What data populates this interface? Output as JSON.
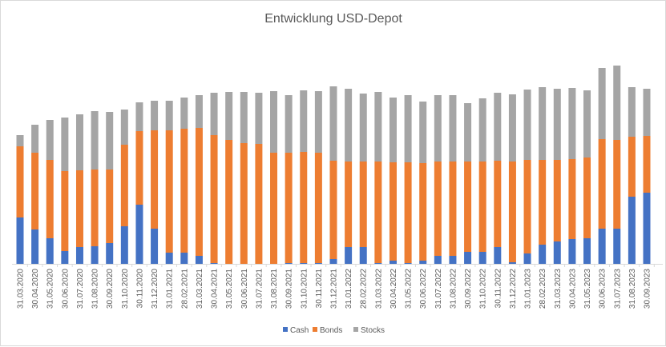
{
  "chart_data": {
    "type": "bar",
    "stacked": true,
    "title": "Entwicklung USD-Depot",
    "xlabel": "",
    "ylabel": "",
    "y_axis_shown": false,
    "grid": false,
    "legend_position": "bottom",
    "categories": [
      "31.03.2020",
      "30.04.2020",
      "31.05.2020",
      "30.06.2020",
      "31.07.2020",
      "31.08.2020",
      "30.09.2020",
      "31.10.2020",
      "30.11.2020",
      "31.12.2020",
      "31.01.2021",
      "28.02.2021",
      "31.03.2021",
      "30.04.2021",
      "31.05.2021",
      "30.06.2021",
      "31.07.2021",
      "31.08.2021",
      "30.09.2021",
      "31.10.2021",
      "30.11.2021",
      "31.12.2021",
      "31.01.2022",
      "28.02.2022",
      "31.03.2022",
      "30.04.2022",
      "31.05.2022",
      "30.06.2022",
      "31.07.2022",
      "31.08.2022",
      "30.09.2022",
      "31.10.2022",
      "30.11.2022",
      "31.12.2022",
      "31.01.2023",
      "28.02.2023",
      "31.03.2023",
      "30.04.2023",
      "31.05.2023",
      "30.06.2023",
      "31.07.2023",
      "31.08.2023",
      "30.09.2023"
    ],
    "series": [
      {
        "name": "Cash",
        "color": "#4472c4",
        "values": [
          58,
          43,
          32,
          16,
          21,
          22,
          26,
          47,
          74,
          44,
          14,
          14,
          10,
          1,
          0,
          0,
          0,
          0,
          1,
          1,
          1,
          6,
          21,
          21,
          1,
          4,
          1,
          4,
          10,
          10,
          15,
          15,
          21,
          2,
          13,
          24,
          28,
          31,
          32,
          44,
          44,
          84,
          89
        ]
      },
      {
        "name": "Bonds",
        "color": "#ed7d31",
        "values": [
          89,
          96,
          98,
          100,
          96,
          96,
          92,
          102,
          92,
          123,
          153,
          155,
          160,
          160,
          155,
          151,
          150,
          139,
          138,
          139,
          138,
          123,
          107,
          107,
          127,
          123,
          126,
          122,
          118,
          118,
          113,
          113,
          108,
          126,
          117,
          106,
          102,
          100,
          101,
          112,
          111,
          75,
          71
        ]
      },
      {
        "name": "Stocks",
        "color": "#a5a5a5",
        "values": [
          14,
          35,
          50,
          67,
          70,
          73,
          72,
          44,
          36,
          37,
          37,
          39,
          41,
          53,
          60,
          64,
          64,
          77,
          72,
          77,
          77,
          93,
          91,
          85,
          87,
          81,
          84,
          77,
          83,
          83,
          73,
          79,
          85,
          84,
          88,
          91,
          89,
          89,
          84,
          89,
          93,
          62,
          59
        ]
      }
    ]
  }
}
